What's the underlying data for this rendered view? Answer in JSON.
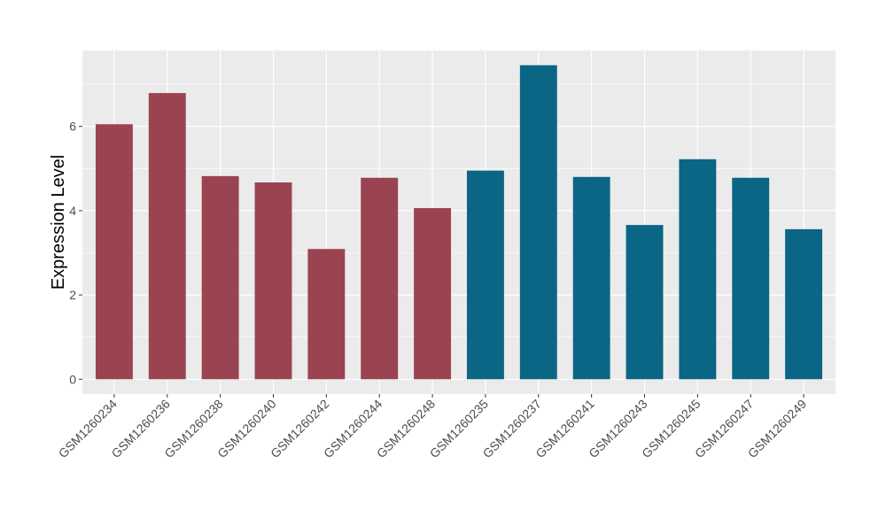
{
  "chart_data": {
    "type": "bar",
    "title": "",
    "xlabel": "",
    "ylabel": "Expression Level",
    "ylim": [
      0,
      7.81
    ],
    "yticks": [
      0,
      2,
      4,
      6
    ],
    "grid": true,
    "legend": "none",
    "categories": [
      "GSM1260234",
      "GSM1260236",
      "GSM1260238",
      "GSM1260240",
      "GSM1260242",
      "GSM1260244",
      "GSM1260248",
      "GSM1260235",
      "GSM1260237",
      "GSM1260241",
      "GSM1260243",
      "GSM1260245",
      "GSM1260247",
      "GSM1260249"
    ],
    "values": [
      6.05,
      6.79,
      4.82,
      4.67,
      3.09,
      4.78,
      4.06,
      4.95,
      7.45,
      4.8,
      3.66,
      5.22,
      4.78,
      3.56
    ],
    "groups": [
      0,
      0,
      0,
      0,
      0,
      0,
      0,
      1,
      1,
      1,
      1,
      1,
      1,
      1
    ],
    "group_colors": [
      "#9A4351",
      "#0B6585"
    ]
  }
}
